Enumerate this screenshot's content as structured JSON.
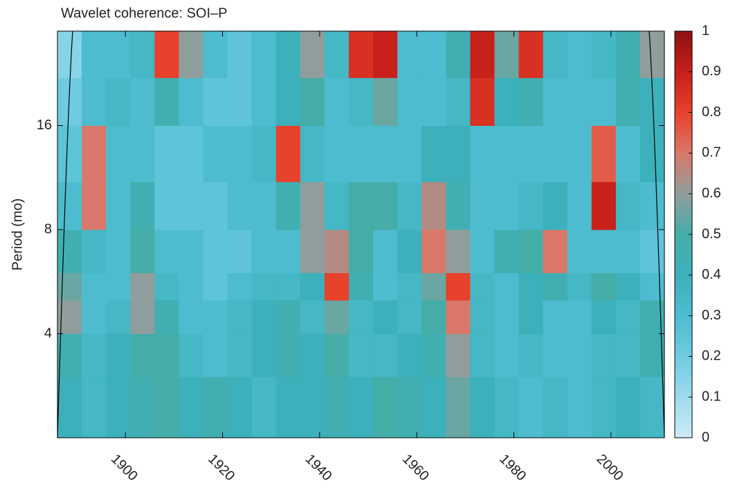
{
  "chart_data": {
    "type": "heatmap",
    "title": "Wavelet coherence: SOI–P",
    "y_label": "Period (mo)",
    "xbins": [
      1886,
      1891,
      1896,
      1901,
      1906,
      1911,
      1916,
      1921,
      1926,
      1931,
      1936,
      1941,
      1946,
      1951,
      1956,
      1961,
      1966,
      1971,
      1976,
      1981,
      1986,
      1991,
      1996,
      2001,
      2006,
      2011
    ],
    "ybins": [
      2,
      3,
      4,
      5,
      6,
      8,
      11,
      16,
      22,
      30
    ],
    "z": [
      [
        0.4,
        0.35,
        0.4,
        0.45,
        0.5,
        0.4,
        0.45,
        0.4,
        0.35,
        0.4,
        0.4,
        0.45,
        0.4,
        0.5,
        0.45,
        0.4,
        0.55,
        0.4,
        0.35,
        0.3,
        0.35,
        0.3,
        0.35,
        0.4,
        0.35
      ],
      [
        0.45,
        0.35,
        0.4,
        0.5,
        0.5,
        0.35,
        0.3,
        0.35,
        0.4,
        0.45,
        0.4,
        0.5,
        0.35,
        0.35,
        0.4,
        0.45,
        0.6,
        0.35,
        0.3,
        0.35,
        0.3,
        0.3,
        0.35,
        0.35,
        0.45
      ],
      [
        0.6,
        0.3,
        0.35,
        0.6,
        0.45,
        0.3,
        0.3,
        0.35,
        0.4,
        0.45,
        0.35,
        0.55,
        0.35,
        0.4,
        0.35,
        0.5,
        0.7,
        0.35,
        0.3,
        0.4,
        0.3,
        0.3,
        0.4,
        0.35,
        0.45
      ],
      [
        0.55,
        0.3,
        0.3,
        0.6,
        0.35,
        0.3,
        0.25,
        0.3,
        0.35,
        0.35,
        0.4,
        0.8,
        0.45,
        0.3,
        0.35,
        0.55,
        0.8,
        0.35,
        0.3,
        0.4,
        0.45,
        0.35,
        0.5,
        0.4,
        0.3
      ],
      [
        0.45,
        0.35,
        0.3,
        0.5,
        0.3,
        0.3,
        0.25,
        0.25,
        0.3,
        0.3,
        0.6,
        0.65,
        0.5,
        0.3,
        0.4,
        0.7,
        0.6,
        0.3,
        0.45,
        0.5,
        0.7,
        0.3,
        0.3,
        0.3,
        0.25
      ],
      [
        0.3,
        0.7,
        0.3,
        0.45,
        0.25,
        0.25,
        0.25,
        0.3,
        0.3,
        0.45,
        0.6,
        0.35,
        0.5,
        0.5,
        0.35,
        0.65,
        0.45,
        0.3,
        0.3,
        0.35,
        0.4,
        0.3,
        0.9,
        0.35,
        0.3
      ],
      [
        0.25,
        0.7,
        0.3,
        0.3,
        0.25,
        0.25,
        0.3,
        0.3,
        0.35,
        0.8,
        0.35,
        0.3,
        0.3,
        0.3,
        0.3,
        0.4,
        0.4,
        0.3,
        0.3,
        0.3,
        0.3,
        0.3,
        0.75,
        0.3,
        0.4
      ],
      [
        0.2,
        0.3,
        0.35,
        0.3,
        0.45,
        0.3,
        0.25,
        0.25,
        0.3,
        0.4,
        0.5,
        0.3,
        0.35,
        0.55,
        0.3,
        0.3,
        0.35,
        0.85,
        0.4,
        0.45,
        0.3,
        0.3,
        0.3,
        0.45,
        0.4
      ],
      [
        0.15,
        0.3,
        0.3,
        0.35,
        0.8,
        0.6,
        0.3,
        0.25,
        0.3,
        0.4,
        0.6,
        0.35,
        0.85,
        0.9,
        0.3,
        0.3,
        0.45,
        0.9,
        0.55,
        0.85,
        0.35,
        0.3,
        0.35,
        0.45,
        0.6
      ]
    ],
    "xlim": [
      1886,
      2011
    ],
    "ylim": [
      2,
      30
    ],
    "y_scale": "log",
    "xticks": [
      1900,
      1920,
      1940,
      1960,
      1980,
      2000
    ],
    "yticks": [
      4,
      8,
      16
    ],
    "zlim": [
      0,
      1
    ],
    "zticks": [
      0,
      0.1,
      0.2,
      0.3,
      0.4,
      0.5,
      0.6,
      0.7,
      0.8,
      0.9,
      1
    ],
    "colormap": [
      "#cdebf7",
      "#9fdbee",
      "#6fcbe0",
      "#4dbccf",
      "#3cb1bb",
      "#45ada8",
      "#8f9e9c",
      "#d9786a",
      "#e8412c",
      "#c8201a",
      "#8b1212"
    ]
  }
}
